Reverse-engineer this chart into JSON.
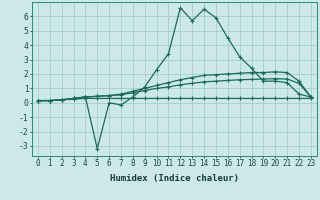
{
  "xlabel": "Humidex (Indice chaleur)",
  "background_color": "#cce8e8",
  "grid_color": "#aacccc",
  "line_color": "#1a6b5a",
  "x": [
    0,
    1,
    2,
    3,
    4,
    5,
    6,
    7,
    8,
    9,
    10,
    11,
    12,
    13,
    14,
    15,
    16,
    17,
    18,
    19,
    20,
    21,
    22,
    23
  ],
  "line1": [
    0.15,
    0.15,
    0.2,
    0.3,
    0.4,
    -3.2,
    0.0,
    -0.15,
    0.4,
    1.1,
    2.3,
    3.4,
    6.6,
    5.7,
    6.5,
    5.9,
    4.5,
    3.2,
    2.4,
    1.5,
    1.5,
    1.4,
    0.6,
    0.4
  ],
  "line2": [
    0.15,
    0.15,
    0.2,
    0.3,
    0.4,
    0.45,
    0.5,
    0.6,
    0.8,
    1.0,
    1.2,
    1.4,
    1.6,
    1.75,
    1.9,
    1.95,
    2.0,
    2.05,
    2.1,
    2.1,
    2.15,
    2.1,
    1.5,
    0.4
  ],
  "line3": [
    0.15,
    0.15,
    0.2,
    0.3,
    0.4,
    0.45,
    0.5,
    0.55,
    0.7,
    0.85,
    1.0,
    1.1,
    1.25,
    1.35,
    1.45,
    1.5,
    1.55,
    1.6,
    1.62,
    1.65,
    1.67,
    1.65,
    1.35,
    0.4
  ],
  "line4": [
    0.15,
    0.15,
    0.2,
    0.25,
    0.3,
    0.3,
    0.3,
    0.3,
    0.3,
    0.3,
    0.3,
    0.3,
    0.3,
    0.3,
    0.3,
    0.3,
    0.3,
    0.3,
    0.3,
    0.3,
    0.3,
    0.3,
    0.3,
    0.3
  ],
  "ylim": [
    -3.7,
    7.0
  ],
  "xlim": [
    -0.5,
    23.5
  ],
  "yticks": [
    -3,
    -2,
    -1,
    0,
    1,
    2,
    3,
    4,
    5,
    6
  ],
  "xticks": [
    0,
    1,
    2,
    3,
    4,
    5,
    6,
    7,
    8,
    9,
    10,
    11,
    12,
    13,
    14,
    15,
    16,
    17,
    18,
    19,
    20,
    21,
    22,
    23
  ],
  "tick_fontsize": 5.5,
  "xlabel_fontsize": 6.5
}
